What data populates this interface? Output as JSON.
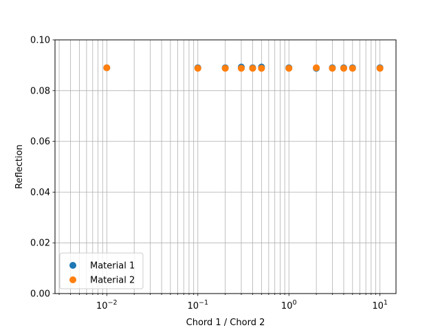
{
  "chart_data": {
    "type": "scatter",
    "title": "",
    "xlabel": "Chord 1 / Chord 2",
    "ylabel": "Reflection",
    "xscale": "log",
    "xlim": [
      0.0027,
      15
    ],
    "ylim": [
      0,
      0.1
    ],
    "grid": "on",
    "legend_position": "lower-left",
    "x_tick_labels": [
      {
        "value": 0.01,
        "base": "10",
        "exp": "−2"
      },
      {
        "value": 0.1,
        "base": "10",
        "exp": "−1"
      },
      {
        "value": 1,
        "base": "10",
        "exp": "0"
      },
      {
        "value": 10,
        "base": "10",
        "exp": "1"
      }
    ],
    "y_ticks": [
      0.0,
      0.02,
      0.04,
      0.06,
      0.08,
      0.1
    ],
    "y_tick_labels": [
      "0.00",
      "0.02",
      "0.04",
      "0.06",
      "0.08",
      "0.10"
    ],
    "series": [
      {
        "name": "Material 1",
        "color": "#1f77b4",
        "x": [
          0.01,
          0.1,
          0.2,
          0.3,
          0.4,
          0.5,
          1,
          2,
          3,
          4,
          5,
          10
        ],
        "y": [
          0.089,
          0.089,
          0.089,
          0.0893,
          0.089,
          0.0893,
          0.089,
          0.0888,
          0.089,
          0.089,
          0.089,
          0.089
        ]
      },
      {
        "name": "Material 2",
        "color": "#ff7f0e",
        "x": [
          0.01,
          0.1,
          0.2,
          0.3,
          0.4,
          0.5,
          1,
          2,
          3,
          4,
          5,
          10
        ],
        "y": [
          0.089,
          0.0888,
          0.0888,
          0.0888,
          0.0888,
          0.0888,
          0.0888,
          0.089,
          0.0888,
          0.0888,
          0.0888,
          0.0888
        ]
      }
    ]
  }
}
